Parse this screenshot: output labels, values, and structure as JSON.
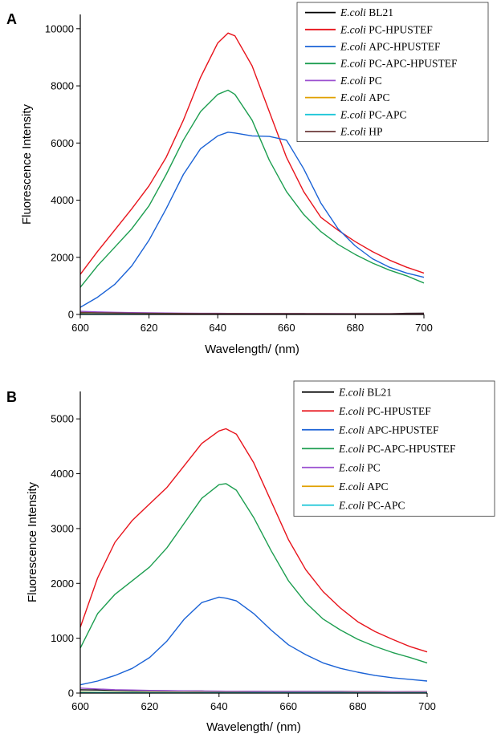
{
  "chart_data": [
    {
      "panel": "A",
      "type": "line",
      "xlabel": "Wavelength/ (nm)",
      "ylabel": "Fluorescence Intensity",
      "xlim": [
        600,
        700
      ],
      "ylim": [
        0,
        10500
      ],
      "xticks": [
        600,
        620,
        640,
        660,
        680,
        700
      ],
      "yticks": [
        0,
        2000,
        4000,
        6000,
        8000,
        10000
      ],
      "x": [
        600,
        605,
        610,
        615,
        620,
        625,
        630,
        635,
        640,
        643,
        645,
        650,
        655,
        660,
        665,
        670,
        675,
        680,
        685,
        690,
        695,
        700
      ],
      "series": [
        {
          "name_italic": "E.coli",
          "name_rest": " BL21",
          "color": "#000000",
          "values": [
            60,
            55,
            50,
            45,
            40,
            38,
            35,
            33,
            30,
            30,
            30,
            28,
            28,
            27,
            27,
            26,
            26,
            26,
            25,
            25,
            40,
            45
          ]
        },
        {
          "name_italic": "E.coli",
          "name_rest": " PC-HPUSTEF",
          "color": "#e8141c",
          "values": [
            1400,
            2200,
            2950,
            3700,
            4500,
            5500,
            6800,
            8300,
            9500,
            9850,
            9750,
            8700,
            7100,
            5500,
            4300,
            3400,
            2950,
            2550,
            2200,
            1900,
            1650,
            1450
          ]
        },
        {
          "name_italic": "E.coli",
          "name_rest": " APC-HPUSTEF",
          "color": "#1a62d6",
          "values": [
            250,
            600,
            1050,
            1700,
            2600,
            3700,
            4900,
            5800,
            6250,
            6380,
            6350,
            6250,
            6230,
            6100,
            5100,
            3900,
            3000,
            2400,
            1950,
            1650,
            1450,
            1300
          ]
        },
        {
          "name_italic": "E.coli",
          "name_rest": " PC-APC-HPUSTEF",
          "color": "#1d9e50",
          "values": [
            950,
            1700,
            2350,
            3000,
            3800,
            4900,
            6100,
            7100,
            7700,
            7850,
            7700,
            6800,
            5400,
            4300,
            3500,
            2900,
            2450,
            2100,
            1800,
            1550,
            1350,
            1100
          ]
        },
        {
          "name_italic": "E.coli",
          "name_rest": " PC",
          "color": "#9a4fd0",
          "values": [
            110,
            90,
            75,
            65,
            55,
            50,
            45,
            40,
            38,
            36,
            35,
            33,
            32,
            30,
            29,
            28,
            27,
            26,
            26,
            25,
            25,
            25
          ]
        },
        {
          "name_italic": "E.coli",
          "name_rest": " APC",
          "color": "#e0a000",
          "values": [
            20,
            18,
            17,
            16,
            15,
            15,
            14,
            14,
            13,
            13,
            13,
            12,
            12,
            12,
            12,
            11,
            11,
            11,
            11,
            10,
            10,
            10
          ]
        },
        {
          "name_italic": "E.coli",
          "name_rest": " PC-APC",
          "color": "#1cc6d8",
          "values": [
            10,
            10,
            9,
            9,
            9,
            8,
            8,
            8,
            8,
            8,
            8,
            7,
            7,
            7,
            7,
            7,
            7,
            6,
            6,
            6,
            6,
            6
          ]
        },
        {
          "name_italic": "E.coli",
          "name_rest": " HP",
          "color": "#6b3a3a",
          "values": [
            70,
            60,
            52,
            46,
            40,
            36,
            33,
            30,
            28,
            27,
            27,
            26,
            25,
            25,
            24,
            24,
            23,
            23,
            23,
            22,
            22,
            22
          ]
        }
      ]
    },
    {
      "panel": "B",
      "type": "line",
      "xlabel": "Wavelength/ (nm)",
      "ylabel": "Fluorescence Intensity",
      "xlim": [
        600,
        700
      ],
      "ylim": [
        0,
        5500
      ],
      "xticks": [
        600,
        620,
        640,
        660,
        680,
        700
      ],
      "yticks": [
        0,
        1000,
        2000,
        3000,
        4000,
        5000
      ],
      "x": [
        600,
        605,
        610,
        615,
        620,
        625,
        630,
        635,
        640,
        642,
        645,
        650,
        655,
        660,
        665,
        670,
        675,
        680,
        685,
        690,
        695,
        700
      ],
      "series": [
        {
          "name_italic": "E.coli",
          "name_rest": " BL21",
          "color": "#000000",
          "values": [
            60,
            55,
            50,
            45,
            42,
            40,
            38,
            36,
            34,
            33,
            33,
            32,
            31,
            30,
            30,
            29,
            29,
            28,
            28,
            27,
            27,
            27
          ]
        },
        {
          "name_italic": "E.coli",
          "name_rest": " PC-HPUSTEF",
          "color": "#e8141c",
          "values": [
            1200,
            2100,
            2750,
            3150,
            3450,
            3750,
            4150,
            4550,
            4780,
            4820,
            4720,
            4200,
            3500,
            2800,
            2250,
            1850,
            1550,
            1300,
            1120,
            980,
            850,
            750
          ]
        },
        {
          "name_italic": "E.coli",
          "name_rest": " APC-HPUSTEF",
          "color": "#1a62d6",
          "values": [
            150,
            220,
            320,
            450,
            650,
            950,
            1350,
            1650,
            1750,
            1730,
            1680,
            1450,
            1150,
            880,
            700,
            550,
            450,
            380,
            320,
            280,
            250,
            220
          ]
        },
        {
          "name_italic": "E.coli",
          "name_rest": " PC-APC-HPUSTEF",
          "color": "#1d9e50",
          "values": [
            820,
            1450,
            1800,
            2050,
            2300,
            2650,
            3100,
            3550,
            3800,
            3820,
            3700,
            3200,
            2600,
            2050,
            1650,
            1350,
            1150,
            980,
            850,
            740,
            650,
            550
          ]
        },
        {
          "name_italic": "E.coli",
          "name_rest": " PC",
          "color": "#9a4fd0",
          "values": [
            90,
            75,
            62,
            55,
            48,
            44,
            40,
            37,
            35,
            34,
            33,
            32,
            31,
            30,
            29,
            28,
            27,
            27,
            26,
            26,
            25,
            25
          ]
        },
        {
          "name_italic": "E.coli",
          "name_rest": " APC",
          "color": "#e0a000",
          "values": [
            20,
            18,
            17,
            16,
            15,
            15,
            14,
            14,
            13,
            13,
            13,
            12,
            12,
            12,
            12,
            11,
            11,
            11,
            11,
            10,
            10,
            10
          ]
        },
        {
          "name_italic": "E.coli",
          "name_rest": " PC-APC",
          "color": "#1cc6d8",
          "values": [
            12,
            11,
            10,
            10,
            9,
            9,
            9,
            8,
            8,
            8,
            8,
            8,
            7,
            7,
            7,
            7,
            7,
            6,
            6,
            6,
            6,
            6
          ]
        }
      ]
    }
  ]
}
